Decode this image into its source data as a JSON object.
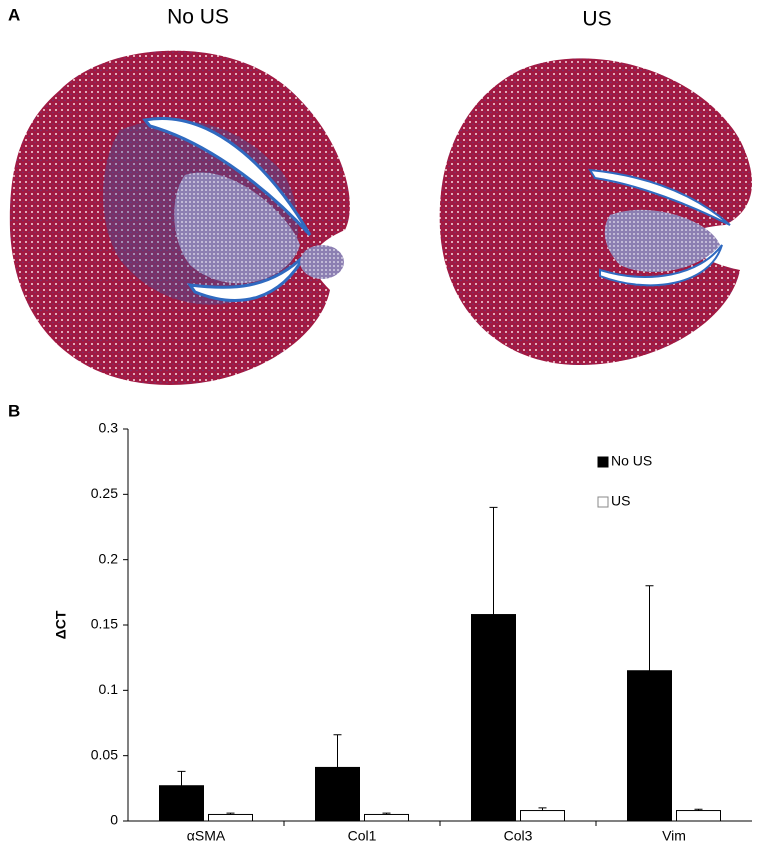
{
  "panel_a": {
    "label": "A",
    "images": [
      {
        "title": "No US"
      },
      {
        "title": "US"
      }
    ]
  },
  "chart_data": {
    "type": "bar",
    "panel_label": "B",
    "ylabel": "ΔCT",
    "categories": [
      "αSMA",
      "Col1",
      "Col3",
      "Vim"
    ],
    "series": [
      {
        "name": "No US",
        "color": "#000000",
        "values": [
          0.027,
          0.041,
          0.158,
          0.115
        ],
        "errors": [
          0.011,
          0.025,
          0.082,
          0.065
        ]
      },
      {
        "name": "US",
        "color": "#ffffff",
        "values": [
          0.005,
          0.005,
          0.008,
          0.008
        ],
        "errors": [
          0.001,
          0.001,
          0.002,
          0.001
        ]
      }
    ],
    "ylim": [
      0,
      0.3
    ],
    "yticks": [
      0,
      0.05,
      0.1,
      0.15,
      0.2,
      0.25,
      0.3
    ],
    "grid": false,
    "legend": "upper right"
  }
}
